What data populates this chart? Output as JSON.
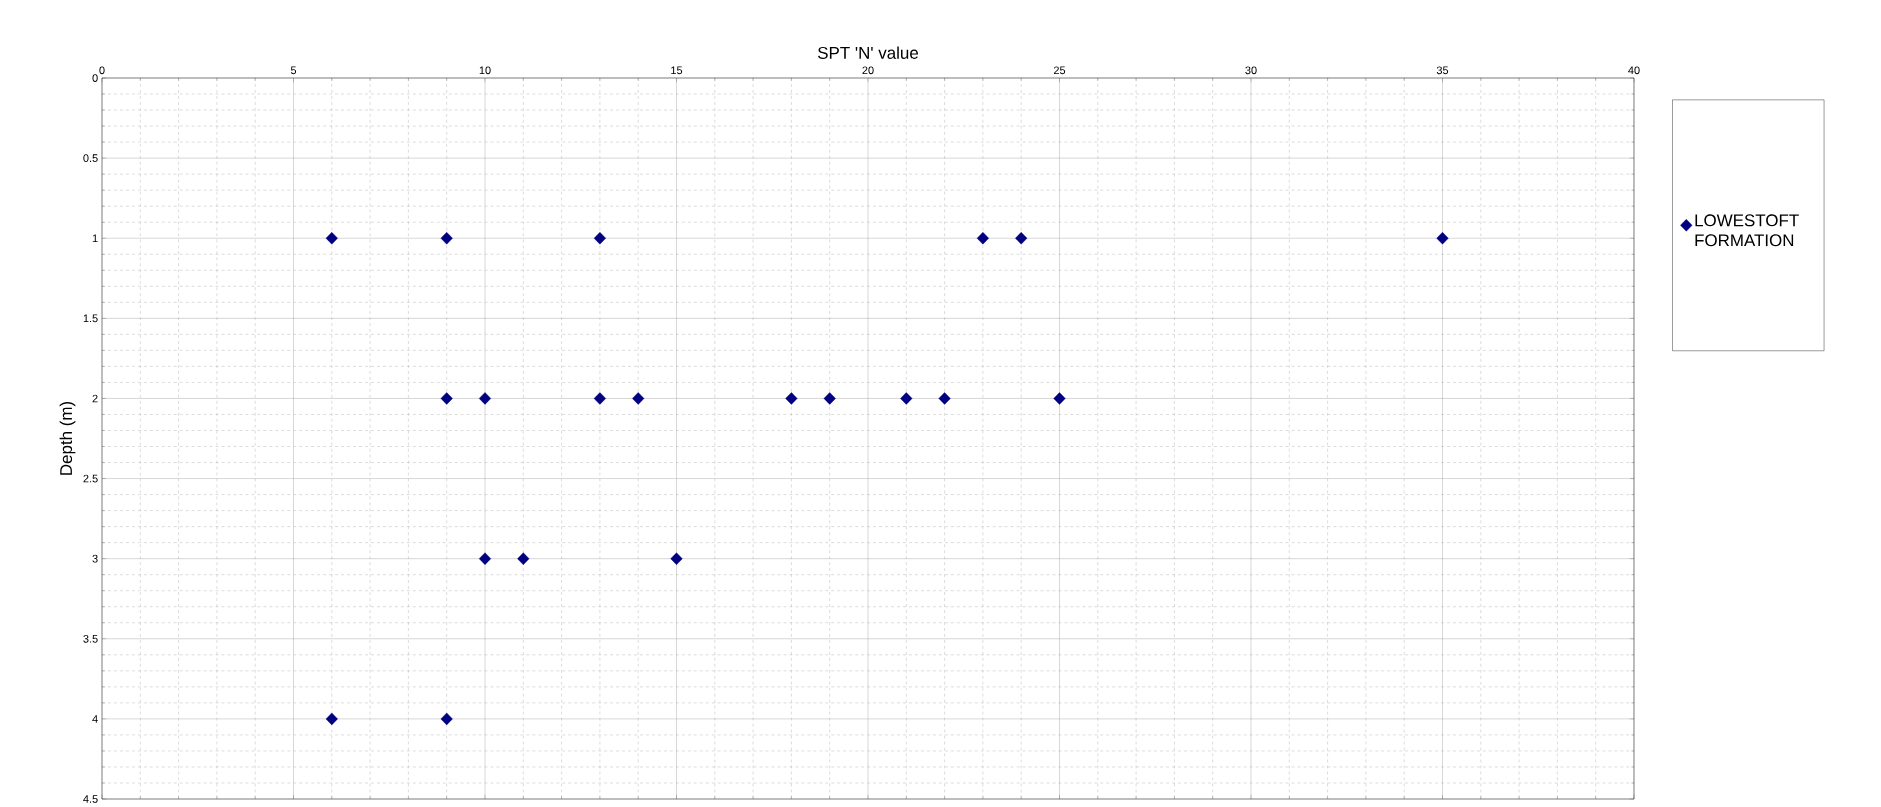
{
  "chart_data": {
    "type": "scatter",
    "xlabel": "SPT 'N' value",
    "ylabel": "Depth (m)",
    "series": [
      {
        "name": "LOWESTOFT FORMATION",
        "color": "#000080",
        "x": [
          6,
          9,
          13,
          23,
          24,
          35,
          9,
          10,
          13,
          14,
          18,
          19,
          21,
          22,
          25,
          10,
          11,
          15,
          6,
          9
        ],
        "values": [
          1,
          1,
          1,
          1,
          1,
          1,
          2,
          2,
          2,
          2,
          2,
          2,
          2,
          2,
          2,
          3,
          3,
          3,
          4,
          4
        ]
      }
    ],
    "xlim": [
      0,
      40
    ],
    "xticks": [
      0,
      5,
      10,
      15,
      20,
      25,
      30,
      35,
      40
    ],
    "ylim": [
      4.5,
      0
    ],
    "yticks": [
      0,
      0.5,
      1,
      1.5,
      2,
      2.5,
      3,
      3.5,
      4,
      4.5
    ],
    "grid": true,
    "legend": "right",
    "marker": "diamond"
  }
}
